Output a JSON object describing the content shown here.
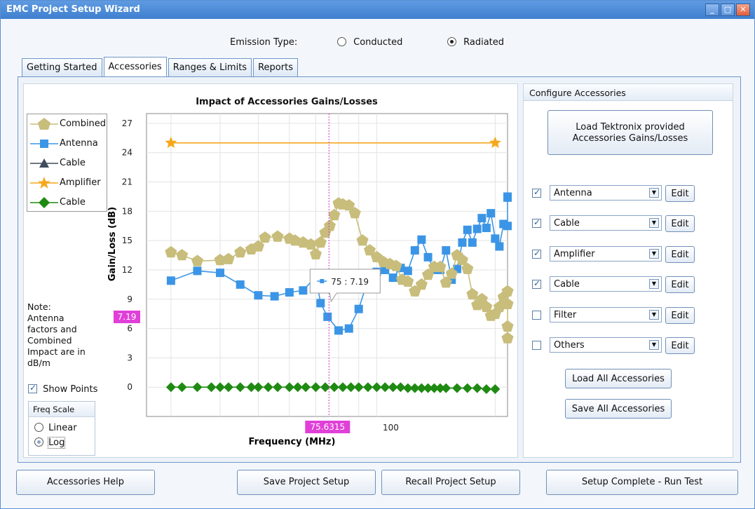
{
  "window": {
    "title": "EMC Project Setup Wizard",
    "controls": [
      "_",
      "□",
      "✕"
    ]
  },
  "emission": {
    "label": "Emission Type:",
    "options": [
      {
        "label": "Conducted",
        "selected": false
      },
      {
        "label": "Radiated",
        "selected": true
      }
    ]
  },
  "tabs": [
    {
      "label": "Getting Started",
      "active": false
    },
    {
      "label": "Accessories",
      "active": true
    },
    {
      "label": "Ranges & Limits",
      "active": false
    },
    {
      "label": "Reports",
      "active": false
    }
  ],
  "legend": [
    {
      "label": "Combined",
      "color": "#c8bd7b",
      "marker": "pentagon"
    },
    {
      "label": "Antenna",
      "color": "#3b95e6",
      "marker": "square"
    },
    {
      "label": "Cable",
      "color": "#3f4c5c",
      "marker": "triangle"
    },
    {
      "label": "Amplifier",
      "color": "#f5a81d",
      "marker": "star"
    },
    {
      "label": "Cable",
      "color": "#1f8a12",
      "marker": "diamond"
    }
  ],
  "note": "Note: Antenna factors and Combined Impact are in dB/m",
  "show_points": {
    "label": "Show Points",
    "checked": true
  },
  "freq_scale": {
    "title": "Freq Scale",
    "options": [
      {
        "label": "Linear",
        "selected": false
      },
      {
        "label": "Log",
        "selected": true
      }
    ]
  },
  "cursor": {
    "x_readout": "75.6315",
    "y_readout": "7.19",
    "tooltip": "75 : 7.19"
  },
  "chart_data": {
    "type": "line",
    "title": "Impact of Accessories Gains/Losses",
    "xlabel": "Frequency (MHz)",
    "ylabel": "Gain/Loss (dB)",
    "x_scale": "log",
    "xlim": [
      26,
      215
    ],
    "ylim": [
      -3,
      28
    ],
    "yticks": [
      0,
      3,
      6,
      9,
      12,
      15,
      18,
      21,
      24,
      27
    ],
    "xtick_labels": [
      {
        "value": 100,
        "label": "100"
      }
    ],
    "grid": true,
    "legend_position": "left",
    "series": [
      {
        "name": "Amplifier",
        "color": "#f5a81d",
        "marker": "star",
        "points": [
          [
            30,
            25
          ],
          [
            200,
            25
          ]
        ]
      },
      {
        "name": "Antenna",
        "color": "#3b95e6",
        "marker": "square",
        "points": [
          [
            30,
            10.9
          ],
          [
            35,
            11.9
          ],
          [
            40,
            11.7
          ],
          [
            45,
            10.5
          ],
          [
            50,
            9.4
          ],
          [
            55,
            9.3
          ],
          [
            60,
            9.7
          ],
          [
            65,
            9.9
          ],
          [
            70,
            11.3
          ],
          [
            72,
            8.6
          ],
          [
            75,
            7.2
          ],
          [
            80,
            5.8
          ],
          [
            85,
            6.0
          ],
          [
            90,
            8.0
          ],
          [
            95,
            11.0
          ],
          [
            100,
            11.8
          ],
          [
            105,
            12.0
          ],
          [
            110,
            11.2
          ],
          [
            115,
            12.2
          ],
          [
            120,
            11.9
          ],
          [
            125,
            14.0
          ],
          [
            130,
            15.1
          ],
          [
            135,
            13.3
          ],
          [
            140,
            12.0
          ],
          [
            145,
            12.0
          ],
          [
            150,
            14.0
          ],
          [
            155,
            11.0
          ],
          [
            160,
            12.1
          ],
          [
            165,
            14.8
          ],
          [
            170,
            16.1
          ],
          [
            175,
            14.8
          ],
          [
            180,
            16.2
          ],
          [
            185,
            17.3
          ],
          [
            190,
            16.3
          ],
          [
            195,
            17.8
          ],
          [
            200,
            15.2
          ],
          [
            205,
            14.4
          ],
          [
            210,
            16.7
          ],
          [
            215,
            16.5
          ],
          [
            220,
            19.5
          ],
          [
            225,
            19.4
          ]
        ]
      },
      {
        "name": "Combined",
        "color": "#c8bd7b",
        "marker": "pentagon",
        "points": [
          [
            30,
            13.8
          ],
          [
            32,
            13.5
          ],
          [
            35,
            12.9
          ],
          [
            40,
            13.0
          ],
          [
            42,
            13.1
          ],
          [
            45,
            13.8
          ],
          [
            48,
            14.1
          ],
          [
            50,
            14.4
          ],
          [
            52,
            15.3
          ],
          [
            56,
            15.4
          ],
          [
            60,
            15.2
          ],
          [
            62,
            15.0
          ],
          [
            65,
            14.8
          ],
          [
            68,
            14.6
          ],
          [
            70,
            13.6
          ],
          [
            72,
            14.8
          ],
          [
            74,
            15.8
          ],
          [
            76,
            16.5
          ],
          [
            78,
            17.6
          ],
          [
            80,
            18.8
          ],
          [
            82,
            18.7
          ],
          [
            85,
            18.6
          ],
          [
            88,
            17.8
          ],
          [
            92,
            15.0
          ],
          [
            96,
            14.0
          ],
          [
            100,
            13.3
          ],
          [
            104,
            12.8
          ],
          [
            108,
            12.6
          ],
          [
            112,
            12.4
          ],
          [
            116,
            11.0
          ],
          [
            120,
            10.8
          ],
          [
            125,
            9.8
          ],
          [
            130,
            10.5
          ],
          [
            135,
            11.5
          ],
          [
            140,
            12.3
          ],
          [
            145,
            12.3
          ],
          [
            150,
            10.7
          ],
          [
            155,
            11.6
          ],
          [
            160,
            13.5
          ],
          [
            165,
            13.0
          ],
          [
            170,
            12.1
          ],
          [
            175,
            9.5
          ],
          [
            180,
            8.4
          ],
          [
            185,
            9.0
          ],
          [
            190,
            8.2
          ],
          [
            195,
            7.3
          ],
          [
            200,
            7.5
          ],
          [
            205,
            8.2
          ],
          [
            210,
            9.2
          ],
          [
            215,
            9.8
          ],
          [
            220,
            8.5
          ],
          [
            225,
            6.2
          ],
          [
            230,
            5.0
          ]
        ]
      },
      {
        "name": "Cable",
        "color": "#1f8a12",
        "marker": "diamond",
        "points": [
          [
            30,
            0
          ],
          [
            32,
            0
          ],
          [
            35,
            0
          ],
          [
            38,
            0
          ],
          [
            40,
            0
          ],
          [
            42,
            0
          ],
          [
            45,
            0
          ],
          [
            48,
            0
          ],
          [
            50,
            0
          ],
          [
            53,
            0
          ],
          [
            56,
            0
          ],
          [
            60,
            0
          ],
          [
            63,
            0
          ],
          [
            66,
            0
          ],
          [
            70,
            0
          ],
          [
            74,
            0
          ],
          [
            78,
            0
          ],
          [
            82,
            0
          ],
          [
            86,
            0
          ],
          [
            90,
            0
          ],
          [
            95,
            0
          ],
          [
            100,
            0
          ],
          [
            105,
            0
          ],
          [
            110,
            0
          ],
          [
            115,
            0
          ],
          [
            120,
            -0.1
          ],
          [
            125,
            -0.1
          ],
          [
            130,
            -0.1
          ],
          [
            135,
            -0.1
          ],
          [
            140,
            -0.1
          ],
          [
            145,
            -0.1
          ],
          [
            150,
            -0.1
          ],
          [
            160,
            -0.1
          ],
          [
            170,
            -0.1
          ],
          [
            180,
            -0.1
          ],
          [
            190,
            -0.2
          ],
          [
            200,
            -0.2
          ]
        ]
      }
    ]
  },
  "configure": {
    "title": "Configure Accessories",
    "load_tek_label": "Load Tektronix provided Accessories Gains/Losses",
    "items": [
      {
        "name": "Antenna",
        "checked": true,
        "edit_label": "Edit"
      },
      {
        "name": "Cable",
        "checked": true,
        "edit_label": "Edit"
      },
      {
        "name": "Amplifier",
        "checked": true,
        "edit_label": "Edit"
      },
      {
        "name": "Cable",
        "checked": true,
        "edit_label": "Edit"
      },
      {
        "name": "Filter",
        "checked": false,
        "edit_label": "Edit"
      },
      {
        "name": "Others",
        "checked": false,
        "edit_label": "Edit"
      }
    ],
    "load_all_label": "Load All Accessories",
    "save_all_label": "Save All Accessories"
  },
  "footer": {
    "help_label": "Accessories Help",
    "save_label": "Save Project Setup",
    "recall_label": "Recall Project Setup",
    "run_label": "Setup Complete - Run Test"
  }
}
